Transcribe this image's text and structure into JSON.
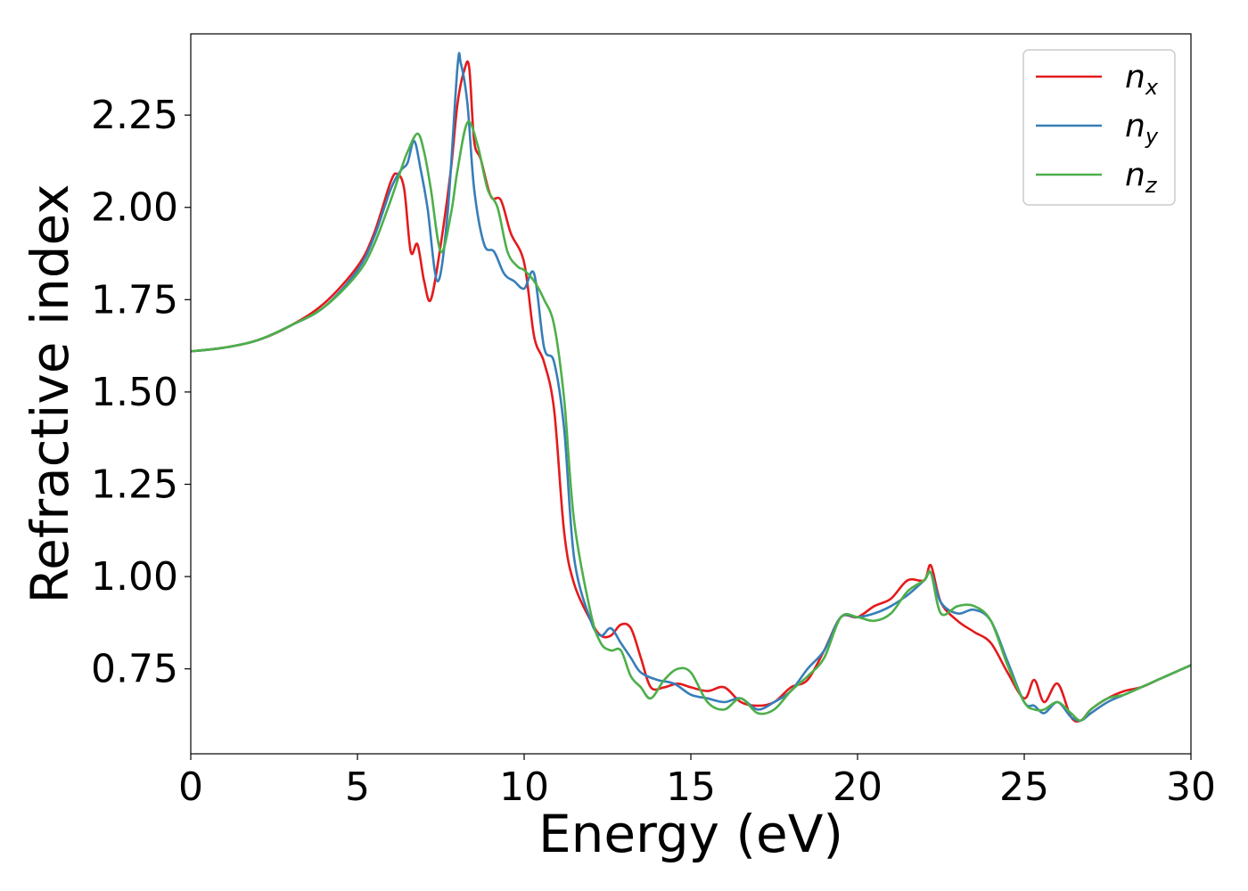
{
  "chart_data": {
    "type": "line",
    "title": "",
    "xlabel": "Energy (eV)",
    "ylabel": "Refractive index",
    "xlim": [
      0,
      30
    ],
    "ylim": [
      0.52,
      2.47
    ],
    "xticks": [
      0,
      5,
      10,
      15,
      20,
      25,
      30
    ],
    "xtick_labels": [
      "0",
      "5",
      "10",
      "15",
      "20",
      "25",
      "30"
    ],
    "yticks": [
      0.75,
      1.0,
      1.25,
      1.5,
      1.75,
      2.0,
      2.25
    ],
    "ytick_labels": [
      "0.75",
      "1.00",
      "1.25",
      "1.50",
      "1.75",
      "2.00",
      "2.25"
    ],
    "grid": false,
    "legend_position": "top-right",
    "series": [
      {
        "name": "n_x",
        "legend_base": "n",
        "legend_sub": "x",
        "color": "#e41a1c",
        "x": [
          0,
          1,
          2,
          3,
          4,
          5,
          5.5,
          6,
          6.2,
          6.4,
          6.6,
          6.8,
          7,
          7.2,
          7.5,
          7.8,
          8,
          8.2,
          8.35,
          8.5,
          8.7,
          9,
          9.3,
          9.6,
          10,
          10.3,
          10.6,
          10.9,
          11.2,
          11.5,
          12,
          12.3,
          12.6,
          12.9,
          13.2,
          13.5,
          13.8,
          14.2,
          14.6,
          15,
          15.5,
          16,
          16.5,
          17,
          17.5,
          18,
          18.5,
          19,
          19.5,
          20,
          20.5,
          21,
          21.5,
          22,
          22.2,
          22.5,
          23,
          23.5,
          24,
          24.5,
          25,
          25.3,
          25.6,
          26,
          26.4,
          26.7,
          27,
          27.5,
          28,
          28.5,
          29,
          29.5,
          30
        ],
        "y": [
          1.61,
          1.62,
          1.64,
          1.68,
          1.74,
          1.84,
          1.93,
          2.07,
          2.09,
          2.05,
          1.88,
          1.9,
          1.8,
          1.75,
          1.9,
          2.1,
          2.28,
          2.37,
          2.38,
          2.18,
          2.13,
          2.03,
          2.02,
          1.93,
          1.85,
          1.65,
          1.58,
          1.45,
          1.12,
          0.98,
          0.88,
          0.84,
          0.84,
          0.87,
          0.86,
          0.78,
          0.7,
          0.7,
          0.71,
          0.7,
          0.69,
          0.7,
          0.66,
          0.65,
          0.66,
          0.7,
          0.72,
          0.8,
          0.89,
          0.89,
          0.92,
          0.94,
          0.99,
          0.99,
          1.03,
          0.93,
          0.88,
          0.85,
          0.82,
          0.74,
          0.67,
          0.72,
          0.66,
          0.71,
          0.62,
          0.61,
          0.64,
          0.67,
          0.69,
          0.7,
          0.72,
          0.74,
          0.76
        ]
      },
      {
        "name": "n_y",
        "legend_base": "n",
        "legend_sub": "y",
        "color": "#377eb8",
        "x": [
          0,
          1,
          2,
          3,
          4,
          5,
          5.5,
          6,
          6.3,
          6.5,
          6.7,
          6.9,
          7.1,
          7.4,
          7.7,
          8,
          8.1,
          8.3,
          8.5,
          8.8,
          9.1,
          9.4,
          9.7,
          10,
          10.3,
          10.6,
          10.9,
          11.2,
          11.5,
          12,
          12.3,
          12.6,
          12.9,
          13.2,
          13.5,
          14,
          14.5,
          15,
          15.5,
          16,
          16.5,
          17,
          17.5,
          18,
          18.5,
          19,
          19.5,
          20,
          20.5,
          21,
          21.5,
          22,
          22.2,
          22.5,
          23,
          23.5,
          24,
          24.5,
          25,
          25.3,
          25.6,
          26,
          26.4,
          26.7,
          27,
          27.5,
          28,
          28.5,
          29,
          29.5,
          30
        ],
        "y": [
          1.61,
          1.62,
          1.64,
          1.68,
          1.73,
          1.83,
          1.92,
          2.05,
          2.1,
          2.12,
          2.18,
          2.1,
          2.0,
          1.8,
          1.98,
          2.38,
          2.39,
          2.28,
          2.05,
          1.9,
          1.88,
          1.82,
          1.8,
          1.78,
          1.82,
          1.62,
          1.58,
          1.4,
          1.05,
          0.88,
          0.84,
          0.86,
          0.82,
          0.78,
          0.74,
          0.72,
          0.71,
          0.68,
          0.67,
          0.66,
          0.67,
          0.64,
          0.66,
          0.69,
          0.75,
          0.8,
          0.89,
          0.89,
          0.9,
          0.92,
          0.95,
          0.99,
          1.01,
          0.93,
          0.9,
          0.91,
          0.88,
          0.77,
          0.66,
          0.65,
          0.63,
          0.66,
          0.62,
          0.61,
          0.63,
          0.66,
          0.68,
          0.7,
          0.72,
          0.74,
          0.76
        ]
      },
      {
        "name": "n_z",
        "legend_base": "n",
        "legend_sub": "z",
        "color": "#4daf4a",
        "x": [
          0,
          1,
          2,
          3,
          4,
          5,
          5.5,
          6,
          6.3,
          6.5,
          6.8,
          7,
          7.2,
          7.5,
          7.8,
          8,
          8.3,
          8.6,
          8.9,
          9.2,
          9.5,
          9.8,
          10,
          10.3,
          10.6,
          10.9,
          11.2,
          11.5,
          12,
          12.3,
          12.6,
          12.9,
          13.2,
          13.5,
          13.8,
          14.2,
          14.6,
          15,
          15.5,
          16,
          16.5,
          17,
          17.5,
          18,
          18.5,
          19,
          19.5,
          20,
          20.5,
          21,
          21.5,
          22,
          22.2,
          22.5,
          23,
          23.5,
          24,
          24.5,
          25,
          25.3,
          25.6,
          26,
          26.4,
          26.7,
          27,
          27.5,
          28,
          28.5,
          29,
          29.5,
          30
        ],
        "y": [
          1.61,
          1.62,
          1.64,
          1.68,
          1.73,
          1.82,
          1.9,
          2.02,
          2.1,
          2.15,
          2.2,
          2.15,
          2.05,
          1.88,
          1.98,
          2.1,
          2.23,
          2.17,
          2.05,
          2.0,
          1.88,
          1.84,
          1.83,
          1.8,
          1.75,
          1.68,
          1.48,
          1.15,
          0.9,
          0.82,
          0.8,
          0.8,
          0.73,
          0.7,
          0.67,
          0.72,
          0.75,
          0.74,
          0.66,
          0.64,
          0.67,
          0.63,
          0.64,
          0.69,
          0.73,
          0.78,
          0.89,
          0.89,
          0.88,
          0.9,
          0.96,
          0.99,
          1.01,
          0.9,
          0.92,
          0.92,
          0.88,
          0.76,
          0.66,
          0.64,
          0.64,
          0.66,
          0.63,
          0.61,
          0.64,
          0.67,
          0.68,
          0.7,
          0.72,
          0.74,
          0.76
        ]
      }
    ]
  }
}
